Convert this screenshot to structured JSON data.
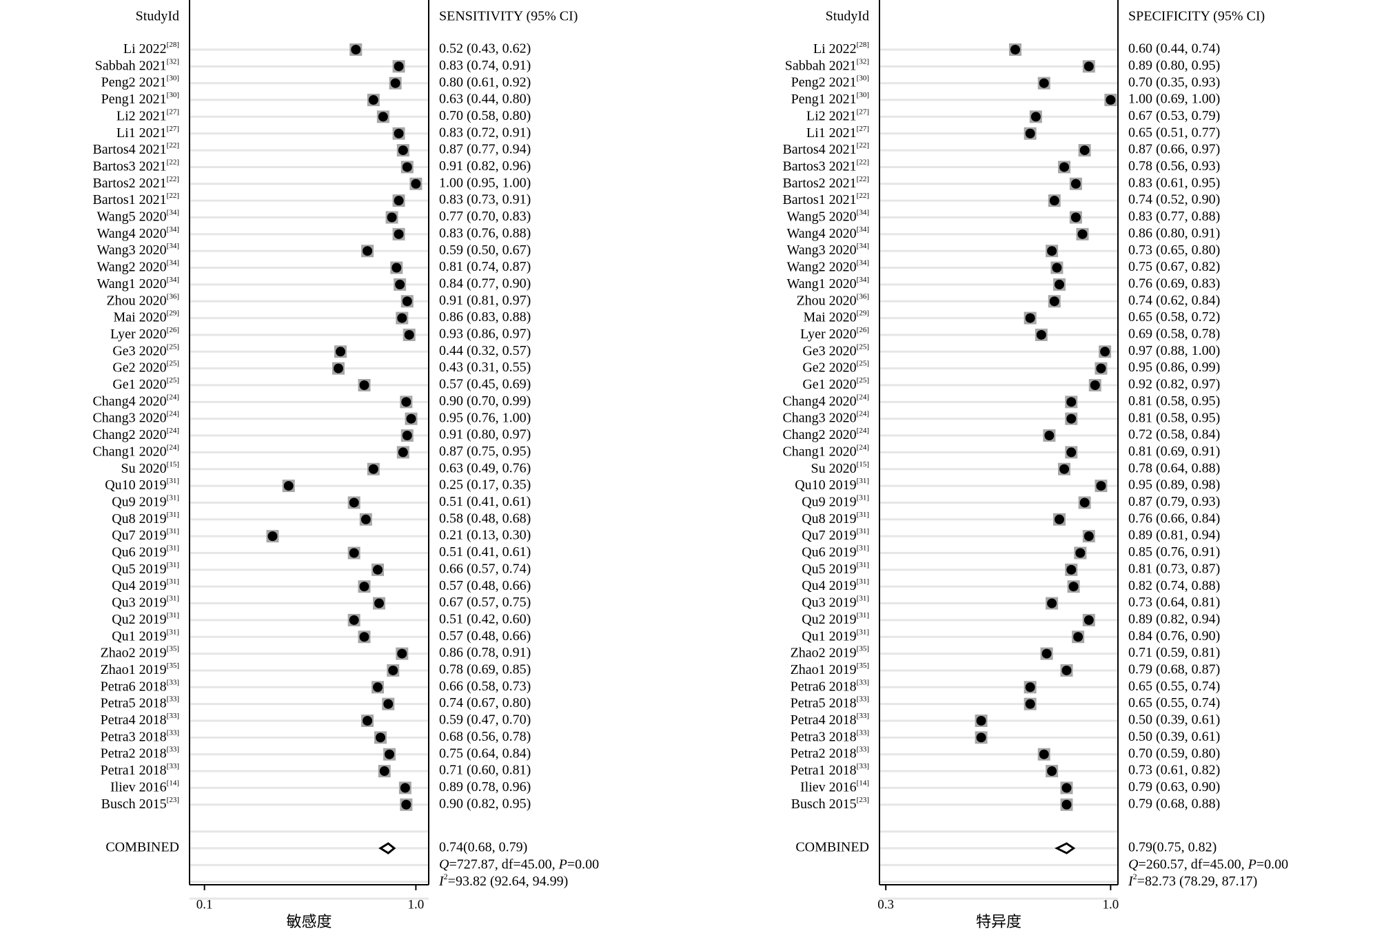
{
  "chart_data": [
    {
      "type": "forest",
      "header_study": "StudyId",
      "header_ci": "SENSITIVITY (95% CI)",
      "xlabel": "敏感度",
      "xscale": "log",
      "xlim": [
        0.085,
        1.15
      ],
      "xticks": [
        {
          "value": 0.1,
          "label": "0.1"
        },
        {
          "value": 1.0,
          "label": "1.0"
        }
      ],
      "grid": true,
      "studies": [
        {
          "name": "Li 2022",
          "ref": "[28]",
          "est": 0.52,
          "lo": 0.43,
          "hi": 0.62,
          "text": "0.52 (0.43, 0.62)"
        },
        {
          "name": "Sabbah 2021",
          "ref": "[32]",
          "est": 0.83,
          "lo": 0.74,
          "hi": 0.91,
          "text": "0.83 (0.74, 0.91)"
        },
        {
          "name": "Peng2 2021",
          "ref": "[30]",
          "est": 0.8,
          "lo": 0.61,
          "hi": 0.92,
          "text": "0.80 (0.61, 0.92)"
        },
        {
          "name": "Peng1 2021",
          "ref": "[30]",
          "est": 0.63,
          "lo": 0.44,
          "hi": 0.8,
          "text": "0.63 (0.44, 0.80)"
        },
        {
          "name": "Li2 2021",
          "ref": "[27]",
          "est": 0.7,
          "lo": 0.58,
          "hi": 0.8,
          "text": "0.70 (0.58, 0.80)"
        },
        {
          "name": "Li1 2021",
          "ref": "[27]",
          "est": 0.83,
          "lo": 0.72,
          "hi": 0.91,
          "text": "0.83 (0.72, 0.91)"
        },
        {
          "name": "Bartos4 2021",
          "ref": "[22]",
          "est": 0.87,
          "lo": 0.77,
          "hi": 0.94,
          "text": "0.87 (0.77, 0.94)"
        },
        {
          "name": "Bartos3 2021",
          "ref": "[22]",
          "est": 0.91,
          "lo": 0.82,
          "hi": 0.96,
          "text": "0.91 (0.82, 0.96)"
        },
        {
          "name": "Bartos2 2021",
          "ref": "[22]",
          "est": 1.0,
          "lo": 0.95,
          "hi": 1.0,
          "text": "1.00 (0.95, 1.00)"
        },
        {
          "name": "Bartos1 2021",
          "ref": "[22]",
          "est": 0.83,
          "lo": 0.73,
          "hi": 0.91,
          "text": "0.83 (0.73, 0.91)"
        },
        {
          "name": "Wang5 2020",
          "ref": "[34]",
          "est": 0.77,
          "lo": 0.7,
          "hi": 0.83,
          "text": "0.77 (0.70, 0.83)"
        },
        {
          "name": "Wang4 2020",
          "ref": "[34]",
          "est": 0.83,
          "lo": 0.76,
          "hi": 0.88,
          "text": "0.83 (0.76, 0.88)"
        },
        {
          "name": "Wang3 2020",
          "ref": "[34]",
          "est": 0.59,
          "lo": 0.5,
          "hi": 0.67,
          "text": "0.59 (0.50, 0.67)"
        },
        {
          "name": "Wang2 2020",
          "ref": "[34]",
          "est": 0.81,
          "lo": 0.74,
          "hi": 0.87,
          "text": "0.81 (0.74, 0.87)"
        },
        {
          "name": "Wang1 2020",
          "ref": "[34]",
          "est": 0.84,
          "lo": 0.77,
          "hi": 0.9,
          "text": "0.84 (0.77, 0.90)"
        },
        {
          "name": "Zhou 2020",
          "ref": "[36]",
          "est": 0.91,
          "lo": 0.81,
          "hi": 0.97,
          "text": "0.91 (0.81, 0.97)"
        },
        {
          "name": "Mai 2020",
          "ref": "[29]",
          "est": 0.86,
          "lo": 0.83,
          "hi": 0.88,
          "text": "0.86 (0.83, 0.88)"
        },
        {
          "name": "Lyer 2020",
          "ref": "[26]",
          "est": 0.93,
          "lo": 0.86,
          "hi": 0.97,
          "text": "0.93 (0.86, 0.97)"
        },
        {
          "name": "Ge3 2020",
          "ref": "[25]",
          "est": 0.44,
          "lo": 0.32,
          "hi": 0.57,
          "text": "0.44 (0.32, 0.57)"
        },
        {
          "name": "Ge2 2020",
          "ref": "[25]",
          "est": 0.43,
          "lo": 0.31,
          "hi": 0.55,
          "text": "0.43 (0.31, 0.55)"
        },
        {
          "name": "Ge1 2020",
          "ref": "[25]",
          "est": 0.57,
          "lo": 0.45,
          "hi": 0.69,
          "text": "0.57 (0.45, 0.69)"
        },
        {
          "name": "Chang4 2020",
          "ref": "[24]",
          "est": 0.9,
          "lo": 0.7,
          "hi": 0.99,
          "text": "0.90 (0.70, 0.99)"
        },
        {
          "name": "Chang3 2020",
          "ref": "[24]",
          "est": 0.95,
          "lo": 0.76,
          "hi": 1.0,
          "text": "0.95 (0.76, 1.00)"
        },
        {
          "name": "Chang2 2020",
          "ref": "[24]",
          "est": 0.91,
          "lo": 0.8,
          "hi": 0.97,
          "text": "0.91 (0.80, 0.97)"
        },
        {
          "name": "Chang1 2020",
          "ref": "[24]",
          "est": 0.87,
          "lo": 0.75,
          "hi": 0.95,
          "text": "0.87 (0.75, 0.95)"
        },
        {
          "name": "Su 2020",
          "ref": "[15]",
          "est": 0.63,
          "lo": 0.49,
          "hi": 0.76,
          "text": "0.63 (0.49, 0.76)"
        },
        {
          "name": "Qu10 2019",
          "ref": "[31]",
          "est": 0.25,
          "lo": 0.17,
          "hi": 0.35,
          "text": "0.25 (0.17, 0.35)"
        },
        {
          "name": "Qu9 2019",
          "ref": "[31]",
          "est": 0.51,
          "lo": 0.41,
          "hi": 0.61,
          "text": "0.51 (0.41, 0.61)"
        },
        {
          "name": "Qu8 2019",
          "ref": "[31]",
          "est": 0.58,
          "lo": 0.48,
          "hi": 0.68,
          "text": "0.58 (0.48, 0.68)"
        },
        {
          "name": "Qu7 2019",
          "ref": "[31]",
          "est": 0.21,
          "lo": 0.13,
          "hi": 0.3,
          "text": "0.21 (0.13, 0.30)"
        },
        {
          "name": "Qu6 2019",
          "ref": "[31]",
          "est": 0.51,
          "lo": 0.41,
          "hi": 0.61,
          "text": "0.51 (0.41, 0.61)"
        },
        {
          "name": "Qu5 2019",
          "ref": "[31]",
          "est": 0.66,
          "lo": 0.57,
          "hi": 0.74,
          "text": "0.66 (0.57, 0.74)"
        },
        {
          "name": "Qu4 2019",
          "ref": "[31]",
          "est": 0.57,
          "lo": 0.48,
          "hi": 0.66,
          "text": "0.57 (0.48, 0.66)"
        },
        {
          "name": "Qu3 2019",
          "ref": "[31]",
          "est": 0.67,
          "lo": 0.57,
          "hi": 0.75,
          "text": "0.67 (0.57, 0.75)"
        },
        {
          "name": "Qu2 2019",
          "ref": "[31]",
          "est": 0.51,
          "lo": 0.42,
          "hi": 0.6,
          "text": "0.51 (0.42, 0.60)"
        },
        {
          "name": "Qu1 2019",
          "ref": "[31]",
          "est": 0.57,
          "lo": 0.48,
          "hi": 0.66,
          "text": "0.57 (0.48, 0.66)"
        },
        {
          "name": "Zhao2 2019",
          "ref": "[35]",
          "est": 0.86,
          "lo": 0.78,
          "hi": 0.91,
          "text": "0.86 (0.78, 0.91)"
        },
        {
          "name": "Zhao1 2019",
          "ref": "[35]",
          "est": 0.78,
          "lo": 0.69,
          "hi": 0.85,
          "text": "0.78 (0.69, 0.85)"
        },
        {
          "name": "Petra6 2018",
          "ref": "[33]",
          "est": 0.66,
          "lo": 0.58,
          "hi": 0.73,
          "text": "0.66 (0.58, 0.73)"
        },
        {
          "name": "Petra5 2018",
          "ref": "[33]",
          "est": 0.74,
          "lo": 0.67,
          "hi": 0.8,
          "text": "0.74 (0.67, 0.80)"
        },
        {
          "name": "Petra4 2018",
          "ref": "[33]",
          "est": 0.59,
          "lo": 0.47,
          "hi": 0.7,
          "text": "0.59 (0.47, 0.70)"
        },
        {
          "name": "Petra3 2018",
          "ref": "[33]",
          "est": 0.68,
          "lo": 0.56,
          "hi": 0.78,
          "text": "0.68 (0.56, 0.78)"
        },
        {
          "name": "Petra2 2018",
          "ref": "[33]",
          "est": 0.75,
          "lo": 0.64,
          "hi": 0.84,
          "text": "0.75 (0.64, 0.84)"
        },
        {
          "name": "Petra1 2018",
          "ref": "[33]",
          "est": 0.71,
          "lo": 0.6,
          "hi": 0.81,
          "text": "0.71 (0.60, 0.81)"
        },
        {
          "name": "Iliev 2016",
          "ref": "[14]",
          "est": 0.89,
          "lo": 0.78,
          "hi": 0.96,
          "text": "0.89 (0.78, 0.96)"
        },
        {
          "name": "Busch 2015",
          "ref": "[23]",
          "est": 0.9,
          "lo": 0.82,
          "hi": 0.95,
          "text": "0.90 (0.82, 0.95)"
        }
      ],
      "combined": {
        "label": "COMBINED",
        "est": 0.74,
        "lo": 0.68,
        "hi": 0.79,
        "text": "0.74(0.68, 0.79)"
      },
      "heterogeneity": {
        "q": {
          "symbol": "Q",
          "rest_a": "=727.87, df=45.00, ",
          "p_symbol": "P",
          "rest_b": "=0.00"
        },
        "i2": {
          "symbol": "I",
          "sup": "2",
          "rest": "=93.82 (92.64, 94.99)"
        }
      }
    },
    {
      "type": "forest",
      "header_study": "StudyId",
      "header_ci": "SPECIFICITY (95% CI)",
      "xlabel": "特异度",
      "xscale": "log",
      "xlim": [
        0.29,
        1.04
      ],
      "xticks": [
        {
          "value": 0.3,
          "label": "0.3"
        },
        {
          "value": 1.0,
          "label": "1.0"
        }
      ],
      "grid": true,
      "studies": [
        {
          "name": "Li 2022",
          "ref": "[28]",
          "est": 0.6,
          "lo": 0.44,
          "hi": 0.74,
          "text": "0.60 (0.44, 0.74)"
        },
        {
          "name": "Sabbah 2021",
          "ref": "[32]",
          "est": 0.89,
          "lo": 0.8,
          "hi": 0.95,
          "text": "0.89 (0.80, 0.95)"
        },
        {
          "name": "Peng2 2021",
          "ref": "[30]",
          "est": 0.7,
          "lo": 0.35,
          "hi": 0.93,
          "text": "0.70 (0.35, 0.93)"
        },
        {
          "name": "Peng1 2021",
          "ref": "[30]",
          "est": 1.0,
          "lo": 0.69,
          "hi": 1.0,
          "text": "1.00 (0.69, 1.00)"
        },
        {
          "name": "Li2 2021",
          "ref": "[27]",
          "est": 0.67,
          "lo": 0.53,
          "hi": 0.79,
          "text": "0.67 (0.53, 0.79)"
        },
        {
          "name": "Li1 2021",
          "ref": "[27]",
          "est": 0.65,
          "lo": 0.51,
          "hi": 0.77,
          "text": "0.65 (0.51, 0.77)"
        },
        {
          "name": "Bartos4 2021",
          "ref": "[22]",
          "est": 0.87,
          "lo": 0.66,
          "hi": 0.97,
          "text": "0.87 (0.66, 0.97)"
        },
        {
          "name": "Bartos3 2021",
          "ref": "[22]",
          "est": 0.78,
          "lo": 0.56,
          "hi": 0.93,
          "text": "0.78 (0.56, 0.93)"
        },
        {
          "name": "Bartos2 2021",
          "ref": "[22]",
          "est": 0.83,
          "lo": 0.61,
          "hi": 0.95,
          "text": "0.83 (0.61, 0.95)"
        },
        {
          "name": "Bartos1 2021",
          "ref": "[22]",
          "est": 0.74,
          "lo": 0.52,
          "hi": 0.9,
          "text": "0.74 (0.52, 0.90)"
        },
        {
          "name": "Wang5 2020",
          "ref": "[34]",
          "est": 0.83,
          "lo": 0.77,
          "hi": 0.88,
          "text": "0.83 (0.77, 0.88)"
        },
        {
          "name": "Wang4 2020",
          "ref": "[34]",
          "est": 0.86,
          "lo": 0.8,
          "hi": 0.91,
          "text": "0.86 (0.80, 0.91)"
        },
        {
          "name": "Wang3 2020",
          "ref": "[34]",
          "est": 0.73,
          "lo": 0.65,
          "hi": 0.8,
          "text": "0.73 (0.65, 0.80)"
        },
        {
          "name": "Wang2 2020",
          "ref": "[34]",
          "est": 0.75,
          "lo": 0.67,
          "hi": 0.82,
          "text": "0.75 (0.67, 0.82)"
        },
        {
          "name": "Wang1 2020",
          "ref": "[34]",
          "est": 0.76,
          "lo": 0.69,
          "hi": 0.83,
          "text": "0.76 (0.69, 0.83)"
        },
        {
          "name": "Zhou 2020",
          "ref": "[36]",
          "est": 0.74,
          "lo": 0.62,
          "hi": 0.84,
          "text": "0.74 (0.62, 0.84)"
        },
        {
          "name": "Mai 2020",
          "ref": "[29]",
          "est": 0.65,
          "lo": 0.58,
          "hi": 0.72,
          "text": "0.65 (0.58, 0.72)"
        },
        {
          "name": "Lyer 2020",
          "ref": "[26]",
          "est": 0.69,
          "lo": 0.58,
          "hi": 0.78,
          "text": "0.69 (0.58, 0.78)"
        },
        {
          "name": "Ge3 2020",
          "ref": "[25]",
          "est": 0.97,
          "lo": 0.88,
          "hi": 1.0,
          "text": "0.97 (0.88, 1.00)"
        },
        {
          "name": "Ge2 2020",
          "ref": "[25]",
          "est": 0.95,
          "lo": 0.86,
          "hi": 0.99,
          "text": "0.95 (0.86, 0.99)"
        },
        {
          "name": "Ge1 2020",
          "ref": "[25]",
          "est": 0.92,
          "lo": 0.82,
          "hi": 0.97,
          "text": "0.92 (0.82, 0.97)"
        },
        {
          "name": "Chang4 2020",
          "ref": "[24]",
          "est": 0.81,
          "lo": 0.58,
          "hi": 0.95,
          "text": "0.81 (0.58, 0.95)"
        },
        {
          "name": "Chang3 2020",
          "ref": "[24]",
          "est": 0.81,
          "lo": 0.58,
          "hi": 0.95,
          "text": "0.81 (0.58, 0.95)"
        },
        {
          "name": "Chang2 2020",
          "ref": "[24]",
          "est": 0.72,
          "lo": 0.58,
          "hi": 0.84,
          "text": "0.72 (0.58, 0.84)"
        },
        {
          "name": "Chang1 2020",
          "ref": "[24]",
          "est": 0.81,
          "lo": 0.69,
          "hi": 0.91,
          "text": "0.81 (0.69, 0.91)"
        },
        {
          "name": "Su 2020",
          "ref": "[15]",
          "est": 0.78,
          "lo": 0.64,
          "hi": 0.88,
          "text": "0.78 (0.64, 0.88)"
        },
        {
          "name": "Qu10 2019",
          "ref": "[31]",
          "est": 0.95,
          "lo": 0.89,
          "hi": 0.98,
          "text": "0.95 (0.89, 0.98)"
        },
        {
          "name": "Qu9 2019",
          "ref": "[31]",
          "est": 0.87,
          "lo": 0.79,
          "hi": 0.93,
          "text": "0.87 (0.79, 0.93)"
        },
        {
          "name": "Qu8 2019",
          "ref": "[31]",
          "est": 0.76,
          "lo": 0.66,
          "hi": 0.84,
          "text": "0.76 (0.66, 0.84)"
        },
        {
          "name": "Qu7 2019",
          "ref": "[31]",
          "est": 0.89,
          "lo": 0.81,
          "hi": 0.94,
          "text": "0.89 (0.81, 0.94)"
        },
        {
          "name": "Qu6 2019",
          "ref": "[31]",
          "est": 0.85,
          "lo": 0.76,
          "hi": 0.91,
          "text": "0.85 (0.76, 0.91)"
        },
        {
          "name": "Qu5 2019",
          "ref": "[31]",
          "est": 0.81,
          "lo": 0.73,
          "hi": 0.87,
          "text": "0.81 (0.73, 0.87)"
        },
        {
          "name": "Qu4 2019",
          "ref": "[31]",
          "est": 0.82,
          "lo": 0.74,
          "hi": 0.88,
          "text": "0.82 (0.74, 0.88)"
        },
        {
          "name": "Qu3 2019",
          "ref": "[31]",
          "est": 0.73,
          "lo": 0.64,
          "hi": 0.81,
          "text": "0.73 (0.64, 0.81)"
        },
        {
          "name": "Qu2 2019",
          "ref": "[31]",
          "est": 0.89,
          "lo": 0.82,
          "hi": 0.94,
          "text": "0.89 (0.82, 0.94)"
        },
        {
          "name": "Qu1 2019",
          "ref": "[31]",
          "est": 0.84,
          "lo": 0.76,
          "hi": 0.9,
          "text": "0.84 (0.76, 0.90)"
        },
        {
          "name": "Zhao2 2019",
          "ref": "[35]",
          "est": 0.71,
          "lo": 0.59,
          "hi": 0.81,
          "text": "0.71 (0.59, 0.81)"
        },
        {
          "name": "Zhao1 2019",
          "ref": "[35]",
          "est": 0.79,
          "lo": 0.68,
          "hi": 0.87,
          "text": "0.79 (0.68, 0.87)"
        },
        {
          "name": "Petra6 2018",
          "ref": "[33]",
          "est": 0.65,
          "lo": 0.55,
          "hi": 0.74,
          "text": "0.65 (0.55, 0.74)"
        },
        {
          "name": "Petra5 2018",
          "ref": "[33]",
          "est": 0.65,
          "lo": 0.55,
          "hi": 0.74,
          "text": "0.65 (0.55, 0.74)"
        },
        {
          "name": "Petra4 2018",
          "ref": "[33]",
          "est": 0.5,
          "lo": 0.39,
          "hi": 0.61,
          "text": "0.50 (0.39, 0.61)"
        },
        {
          "name": "Petra3 2018",
          "ref": "[33]",
          "est": 0.5,
          "lo": 0.39,
          "hi": 0.61,
          "text": "0.50 (0.39, 0.61)"
        },
        {
          "name": "Petra2 2018",
          "ref": "[33]",
          "est": 0.7,
          "lo": 0.59,
          "hi": 0.8,
          "text": "0.70 (0.59, 0.80)"
        },
        {
          "name": "Petra1 2018",
          "ref": "[33]",
          "est": 0.73,
          "lo": 0.61,
          "hi": 0.82,
          "text": "0.73 (0.61, 0.82)"
        },
        {
          "name": "Iliev 2016",
          "ref": "[14]",
          "est": 0.79,
          "lo": 0.63,
          "hi": 0.9,
          "text": "0.79 (0.63, 0.90)"
        },
        {
          "name": "Busch 2015",
          "ref": "[23]",
          "est": 0.79,
          "lo": 0.68,
          "hi": 0.88,
          "text": "0.79 (0.68, 0.88)"
        }
      ],
      "combined": {
        "label": "COMBINED",
        "est": 0.79,
        "lo": 0.75,
        "hi": 0.82,
        "text": "0.79(0.75, 0.82)"
      },
      "heterogeneity": {
        "q": {
          "symbol": "Q",
          "rest_a": "=260.57, df=45.00, ",
          "p_symbol": "P",
          "rest_b": "=0.00"
        },
        "i2": {
          "symbol": "I",
          "sup": "2",
          "rest": "=82.73 (78.29, 87.17)"
        }
      }
    }
  ],
  "colors": {
    "marker_box": "#a6a6a6",
    "marker_dot": "#000000",
    "grid": "#e6e6e6",
    "axis": "#000000",
    "background": "#ffffff"
  }
}
